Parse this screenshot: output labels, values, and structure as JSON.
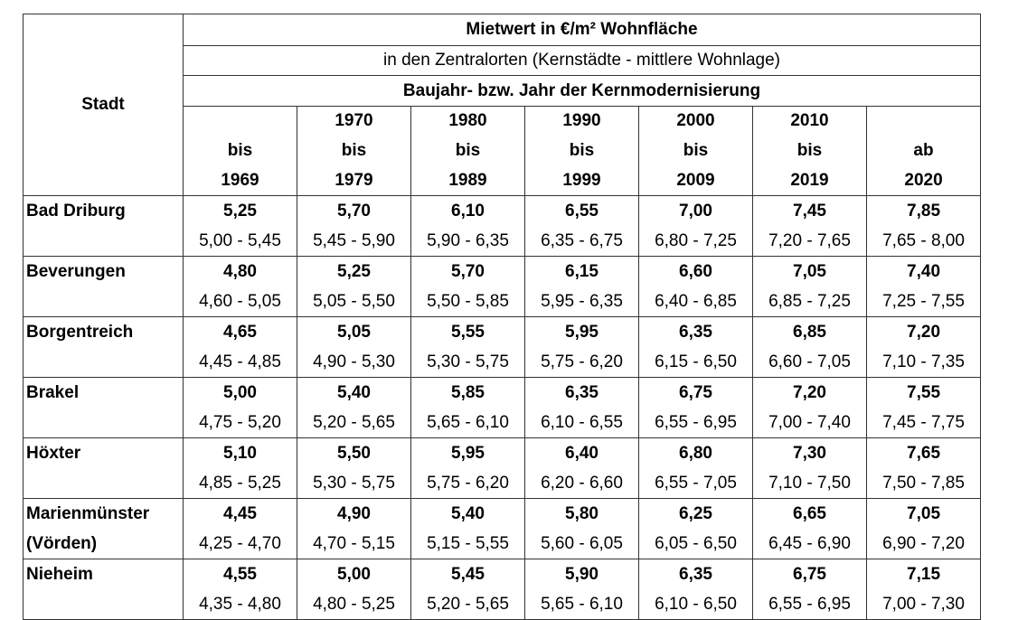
{
  "header": {
    "title": "Mietwert in €/m² Wohnfläche",
    "subtitle": "in den Zentralorten (Kernstädte - mittlere Wohnlage)",
    "group_label": "Baujahr- bzw. Jahr der Kernmodernisierung",
    "stadt_label": "Stadt",
    "columns": [
      [
        "bis",
        "1969"
      ],
      [
        "1970",
        "bis",
        "1979"
      ],
      [
        "1980",
        "bis",
        "1989"
      ],
      [
        "1990",
        "bis",
        "1999"
      ],
      [
        "2000",
        "bis",
        "2009"
      ],
      [
        "2010",
        "bis",
        "2019"
      ],
      [
        "ab",
        "2020"
      ]
    ]
  },
  "rows": [
    {
      "city": [
        "Bad Driburg"
      ],
      "values": [
        {
          "mean": "5,25",
          "range": "5,00 - 5,45"
        },
        {
          "mean": "5,70",
          "range": "5,45 - 5,90"
        },
        {
          "mean": "6,10",
          "range": "5,90 - 6,35"
        },
        {
          "mean": "6,55",
          "range": "6,35 - 6,75"
        },
        {
          "mean": "7,00",
          "range": "6,80 - 7,25"
        },
        {
          "mean": "7,45",
          "range": "7,20 - 7,65"
        },
        {
          "mean": "7,85",
          "range": "7,65 - 8,00"
        }
      ]
    },
    {
      "city": [
        "Beverungen"
      ],
      "values": [
        {
          "mean": "4,80",
          "range": "4,60 - 5,05"
        },
        {
          "mean": "5,25",
          "range": "5,05 - 5,50"
        },
        {
          "mean": "5,70",
          "range": "5,50 - 5,85"
        },
        {
          "mean": "6,15",
          "range": "5,95 - 6,35"
        },
        {
          "mean": "6,60",
          "range": "6,40 - 6,85"
        },
        {
          "mean": "7,05",
          "range": "6,85 - 7,25"
        },
        {
          "mean": "7,40",
          "range": "7,25 - 7,55"
        }
      ]
    },
    {
      "city": [
        "Borgentreich"
      ],
      "values": [
        {
          "mean": "4,65",
          "range": "4,45 - 4,85"
        },
        {
          "mean": "5,05",
          "range": "4,90 - 5,30"
        },
        {
          "mean": "5,55",
          "range": "5,30 - 5,75"
        },
        {
          "mean": "5,95",
          "range": "5,75 - 6,20"
        },
        {
          "mean": "6,35",
          "range": "6,15 - 6,50"
        },
        {
          "mean": "6,85",
          "range": "6,60 - 7,05"
        },
        {
          "mean": "7,20",
          "range": "7,10 - 7,35"
        }
      ]
    },
    {
      "city": [
        "Brakel"
      ],
      "values": [
        {
          "mean": "5,00",
          "range": "4,75 - 5,20"
        },
        {
          "mean": "5,40",
          "range": "5,20 - 5,65"
        },
        {
          "mean": "5,85",
          "range": "5,65 - 6,10"
        },
        {
          "mean": "6,35",
          "range": "6,10 - 6,55"
        },
        {
          "mean": "6,75",
          "range": "6,55 - 6,95"
        },
        {
          "mean": "7,20",
          "range": "7,00 - 7,40"
        },
        {
          "mean": "7,55",
          "range": "7,45 - 7,75"
        }
      ]
    },
    {
      "city": [
        "Höxter"
      ],
      "values": [
        {
          "mean": "5,10",
          "range": "4,85 - 5,25"
        },
        {
          "mean": "5,50",
          "range": "5,30 - 5,75"
        },
        {
          "mean": "5,95",
          "range": "5,75 - 6,20"
        },
        {
          "mean": "6,40",
          "range": "6,20 - 6,60"
        },
        {
          "mean": "6,80",
          "range": "6,55 - 7,05"
        },
        {
          "mean": "7,30",
          "range": "7,10 - 7,50"
        },
        {
          "mean": "7,65",
          "range": "7,50 - 7,85"
        }
      ]
    },
    {
      "city": [
        "Marienmünster",
        "(Vörden)"
      ],
      "values": [
        {
          "mean": "4,45",
          "range": "4,25 - 4,70"
        },
        {
          "mean": "4,90",
          "range": "4,70 - 5,15"
        },
        {
          "mean": "5,40",
          "range": "5,15 - 5,55"
        },
        {
          "mean": "5,80",
          "range": "5,60 - 6,05"
        },
        {
          "mean": "6,25",
          "range": "6,05 - 6,50"
        },
        {
          "mean": "6,65",
          "range": "6,45 - 6,90"
        },
        {
          "mean": "7,05",
          "range": "6,90 - 7,20"
        }
      ]
    },
    {
      "city": [
        "Nieheim"
      ],
      "values": [
        {
          "mean": "4,55",
          "range": "4,35 - 4,80"
        },
        {
          "mean": "5,00",
          "range": "4,80 - 5,25"
        },
        {
          "mean": "5,45",
          "range": "5,20 - 5,65"
        },
        {
          "mean": "5,90",
          "range": "5,65 - 6,10"
        },
        {
          "mean": "6,35",
          "range": "6,10 - 6,50"
        },
        {
          "mean": "6,75",
          "range": "6,55 - 6,95"
        },
        {
          "mean": "7,15",
          "range": "7,00 - 7,30"
        }
      ]
    }
  ]
}
